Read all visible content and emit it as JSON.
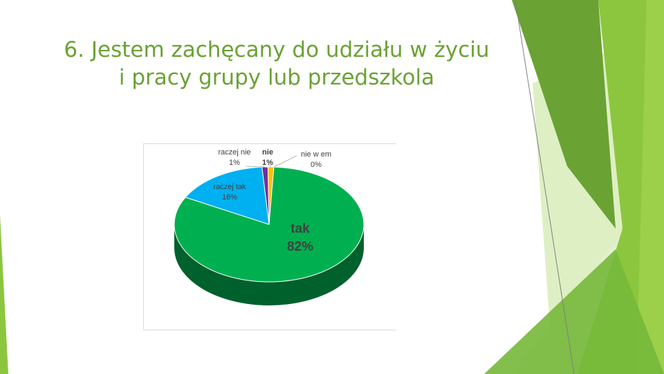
{
  "slide": {
    "title_line1": "6. Jestem zachęcany do udziału w życiu",
    "title_line2": "i pracy grupy lub przedszkola"
  },
  "colors": {
    "title": "#6aa234",
    "accent_green": "#8cc63f",
    "dark_green": "#5a9a2c"
  },
  "chart_data": {
    "type": "pie",
    "title": "",
    "legend": "none",
    "labels_on_chart": true,
    "series": [
      {
        "slices": [
          {
            "label": "tak",
            "value": 82,
            "display": "82%",
            "color": "#00b050"
          },
          {
            "label": "raczej tak",
            "value": 16,
            "display": "16%",
            "color": "#00b0f0"
          },
          {
            "label": "raczej nie",
            "value": 1,
            "display": "1%",
            "color": "#7030a0"
          },
          {
            "label": "nie",
            "value": 1,
            "display": "1%",
            "color": "#ffc000"
          },
          {
            "label": "nie w em",
            "value": 0,
            "display": "0%",
            "color": "#a5a5a5"
          }
        ]
      }
    ]
  }
}
